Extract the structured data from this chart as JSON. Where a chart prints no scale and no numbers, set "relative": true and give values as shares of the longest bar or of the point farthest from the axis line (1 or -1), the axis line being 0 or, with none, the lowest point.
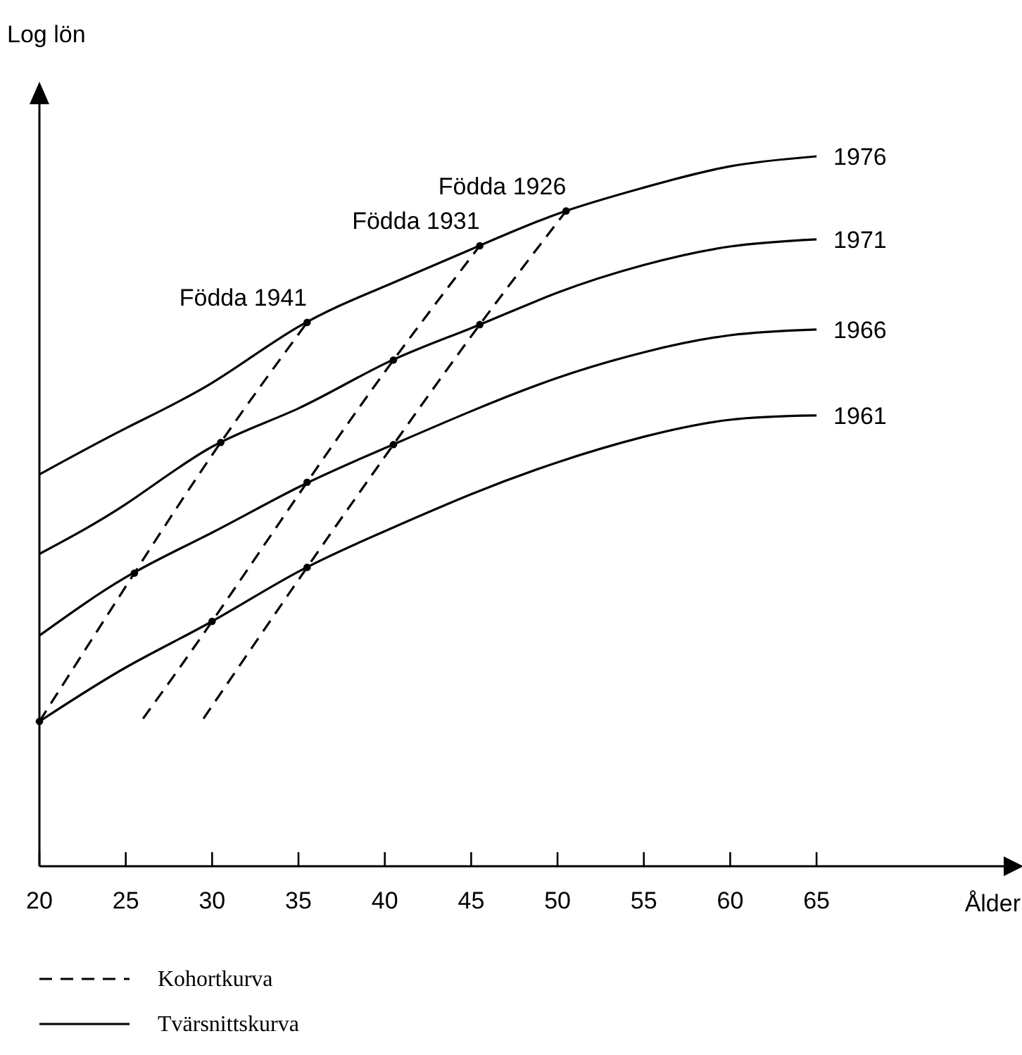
{
  "chart_data": {
    "type": "line",
    "relative": true,
    "xlabel": "Ålder",
    "ylabel": "Log lön",
    "xlim": [
      20,
      76
    ],
    "xticks": [
      20,
      25,
      30,
      35,
      40,
      45,
      50,
      55,
      60,
      65
    ],
    "tick_labels": "x",
    "grid": false,
    "annotations": [
      "Kohortkurva",
      "Tvärsnittskurva"
    ],
    "series": [
      {
        "name": "Födda 1941",
        "color": "#000000",
        "line_style": "dashed",
        "marker": "none",
        "x": [
          20,
          25.5,
          30.5,
          35.5
        ],
        "values": [
          0.204,
          0.413,
          0.597,
          0.766
        ]
      },
      {
        "name": "Födda 1931",
        "color": "#000000",
        "line_style": "dashed",
        "marker": "none",
        "x": [
          26,
          30,
          35.5,
          40.5,
          45.5
        ],
        "values": [
          0.208,
          0.345,
          0.541,
          0.713,
          0.874
        ]
      },
      {
        "name": "Födda 1926",
        "color": "#000000",
        "line_style": "dashed",
        "marker": "none",
        "x": [
          29.5,
          35.5,
          40.5,
          45.5,
          50.5
        ],
        "values": [
          0.208,
          0.421,
          0.594,
          0.763,
          0.923
        ]
      },
      {
        "name": "1976",
        "color": "#000000",
        "line_style": "solid",
        "marker": "none",
        "x": [
          20,
          25,
          30,
          35,
          40,
          45,
          50,
          55,
          60,
          65
        ],
        "values": [
          0.552,
          0.617,
          0.681,
          0.76,
          0.817,
          0.869,
          0.919,
          0.956,
          0.986,
          1
        ]
      },
      {
        "name": "1971",
        "color": "#000000",
        "line_style": "solid",
        "marker": "none",
        "x": [
          20,
          25,
          30,
          35,
          40,
          45,
          50,
          55,
          60,
          65
        ],
        "values": [
          0.44,
          0.51,
          0.591,
          0.645,
          0.708,
          0.758,
          0.808,
          0.847,
          0.873,
          0.883
        ]
      },
      {
        "name": "1966",
        "color": "#000000",
        "line_style": "solid",
        "marker": "none",
        "x": [
          20,
          25,
          30,
          35,
          40,
          45,
          50,
          55,
          60,
          65
        ],
        "values": [
          0.325,
          0.407,
          0.47,
          0.534,
          0.589,
          0.641,
          0.688,
          0.724,
          0.748,
          0.756
        ]
      },
      {
        "name": "1961",
        "color": "#000000",
        "line_style": "solid",
        "marker": "none",
        "x": [
          20,
          25,
          30,
          35,
          40,
          45,
          50,
          55,
          60,
          65
        ],
        "values": [
          0.204,
          0.28,
          0.345,
          0.415,
          0.472,
          0.524,
          0.569,
          0.605,
          0.629,
          0.635
        ]
      },
      {
        "type": "scatter",
        "color": "#000000",
        "marker": "circle",
        "x": [
          20,
          25.5,
          30.5,
          35.5,
          30,
          35.5,
          40.5,
          45.5,
          35.5,
          40.5,
          45.5,
          50.5
        ],
        "values": [
          0.204,
          0.413,
          0.597,
          0.766,
          0.345,
          0.541,
          0.713,
          0.874,
          0.421,
          0.594,
          0.763,
          0.923
        ]
      }
    ]
  }
}
